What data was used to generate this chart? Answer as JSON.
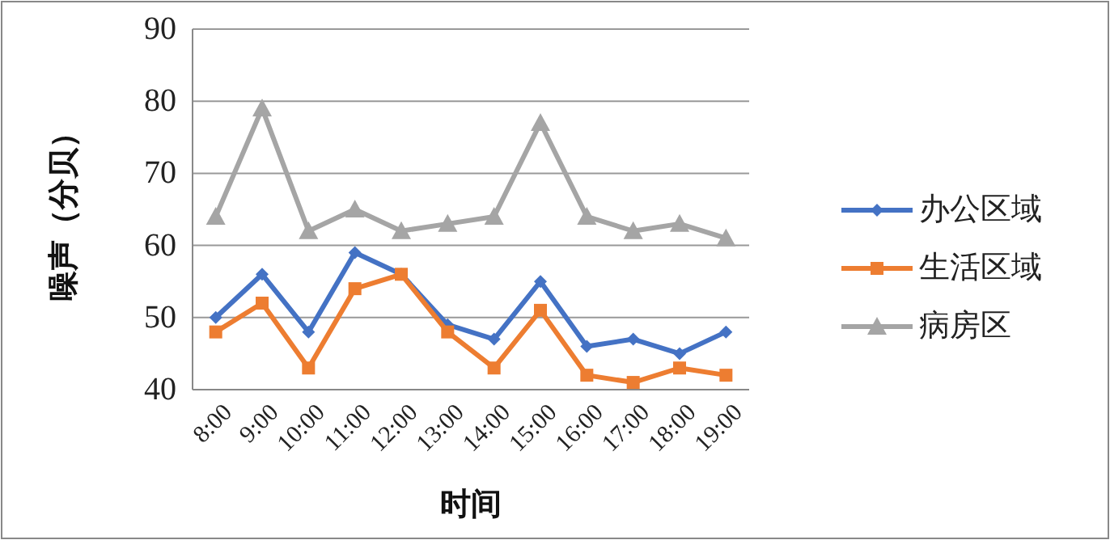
{
  "chart_data": {
    "type": "line",
    "xlabel": "时间",
    "ylabel": "噪声（分贝）",
    "categories": [
      "8:00",
      "9:00",
      "10:00",
      "11:00",
      "12:00",
      "13:00",
      "14:00",
      "15:00",
      "16:00",
      "17:00",
      "18:00",
      "19:00"
    ],
    "series": [
      {
        "name": "办公区域",
        "color": "#4472c4",
        "marker": "diamond",
        "values": [
          50,
          56,
          48,
          59,
          56,
          49,
          47,
          55,
          46,
          47,
          45,
          48
        ]
      },
      {
        "name": "生活区域",
        "color": "#ed7d31",
        "marker": "square",
        "values": [
          48,
          52,
          43,
          54,
          56,
          48,
          43,
          51,
          42,
          41,
          43,
          42
        ]
      },
      {
        "name": "病房区",
        "color": "#a5a5a5",
        "marker": "triangle",
        "values": [
          64,
          79,
          62,
          65,
          62,
          63,
          64,
          77,
          64,
          62,
          63,
          61
        ]
      }
    ],
    "ylim": [
      40,
      90
    ],
    "yticks": [
      40,
      50,
      60,
      70,
      80,
      90
    ],
    "grid": "y",
    "legend": "right"
  }
}
